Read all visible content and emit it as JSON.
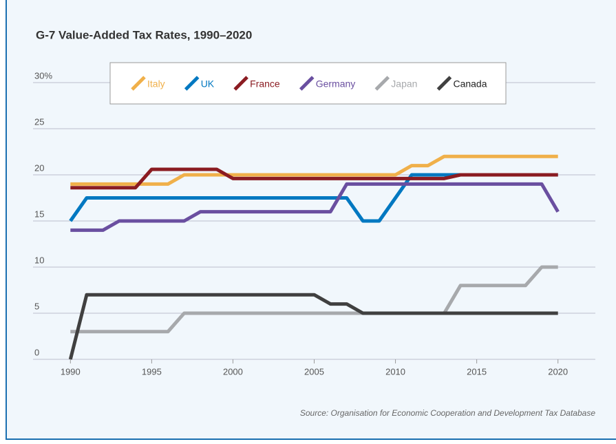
{
  "chart_data": {
    "type": "line",
    "title": "G-7 Value-Added Tax Rates, 1990–2020",
    "source": "Source: Organisation for Economic Cooperation and Development Tax Database",
    "x": [
      1990,
      1991,
      1992,
      1993,
      1994,
      1995,
      1996,
      1997,
      1998,
      1999,
      2000,
      2001,
      2002,
      2003,
      2004,
      2005,
      2006,
      2007,
      2008,
      2009,
      2010,
      2011,
      2012,
      2013,
      2014,
      2015,
      2016,
      2017,
      2018,
      2019,
      2020
    ],
    "series": [
      {
        "name": "Italy",
        "color": "#f0b04a",
        "values": [
          19,
          19,
          19,
          19,
          19,
          19,
          19,
          20,
          20,
          20,
          20,
          20,
          20,
          20,
          20,
          20,
          20,
          20,
          20,
          20,
          20,
          21,
          21,
          22,
          22,
          22,
          22,
          22,
          22,
          22,
          22
        ]
      },
      {
        "name": "UK",
        "color": "#0078c1",
        "values": [
          15,
          17.5,
          17.5,
          17.5,
          17.5,
          17.5,
          17.5,
          17.5,
          17.5,
          17.5,
          17.5,
          17.5,
          17.5,
          17.5,
          17.5,
          17.5,
          17.5,
          17.5,
          15,
          15,
          17.5,
          20,
          20,
          20,
          20,
          20,
          20,
          20,
          20,
          20,
          20
        ]
      },
      {
        "name": "France",
        "color": "#8b1c22",
        "values": [
          18.6,
          18.6,
          18.6,
          18.6,
          18.6,
          20.6,
          20.6,
          20.6,
          20.6,
          20.6,
          19.6,
          19.6,
          19.6,
          19.6,
          19.6,
          19.6,
          19.6,
          19.6,
          19.6,
          19.6,
          19.6,
          19.6,
          19.6,
          19.6,
          20,
          20,
          20,
          20,
          20,
          20,
          20
        ]
      },
      {
        "name": "Germany",
        "color": "#6a4fa0",
        "values": [
          14,
          14,
          14,
          15,
          15,
          15,
          15,
          15,
          16,
          16,
          16,
          16,
          16,
          16,
          16,
          16,
          16,
          19,
          19,
          19,
          19,
          19,
          19,
          19,
          19,
          19,
          19,
          19,
          19,
          19,
          16
        ]
      },
      {
        "name": "Japan",
        "color": "#a7a9ac",
        "values": [
          3,
          3,
          3,
          3,
          3,
          3,
          3,
          5,
          5,
          5,
          5,
          5,
          5,
          5,
          5,
          5,
          5,
          5,
          5,
          5,
          5,
          5,
          5,
          5,
          8,
          8,
          8,
          8,
          8,
          10,
          10
        ]
      },
      {
        "name": "Canada",
        "color": "#404040",
        "values": [
          0,
          7,
          7,
          7,
          7,
          7,
          7,
          7,
          7,
          7,
          7,
          7,
          7,
          7,
          7,
          7,
          6,
          6,
          5,
          5,
          5,
          5,
          5,
          5,
          5,
          5,
          5,
          5,
          5,
          5,
          5
        ]
      }
    ],
    "xlim": [
      1987.7,
      2022.3
    ],
    "xticks": [
      1990,
      1995,
      2000,
      2005,
      2010,
      2015,
      2020
    ],
    "ylim": [
      0,
      30
    ],
    "yticks": [
      0,
      5,
      10,
      15,
      20,
      25,
      {
        "value": 30,
        "label": "30%"
      }
    ],
    "grid": true,
    "legend": "top"
  }
}
